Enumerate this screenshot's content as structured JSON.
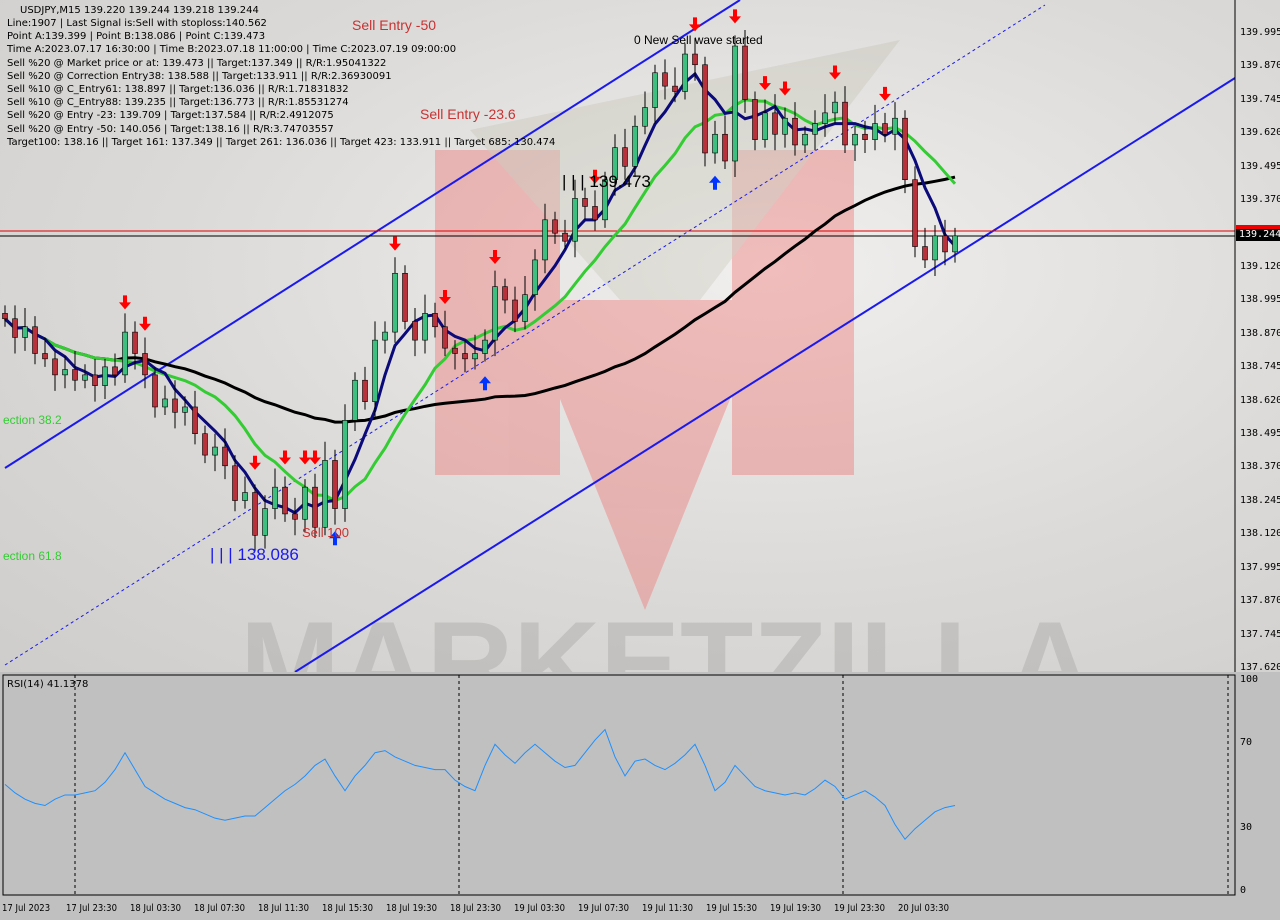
{
  "header": {
    "symbol_line": "USDJPY,M15  139.220 139.244 139.218 139.244",
    "lines": [
      "Line:1907 | Last Signal is:Sell with stoploss:140.562",
      "Point A:139.399 | Point B:138.086 | Point C:139.473",
      "Time A:2023.07.17 16:30:00 | Time B:2023.07.18 11:00:00 | Time C:2023.07.19 09:00:00",
      "Sell %20 @ Market price or at: 139.473 || Target:137.349 || R/R:1.95041322",
      "Sell %20 @ Correction Entry38: 138.588 || Target:133.911 || R/R:2.36930091",
      "Sell %10 @ C_Entry61: 138.897 || Target:136.036 || R/R:1.71831832",
      "Sell %10 @ C_Entry88: 139.235 || Target:136.773 || R/R:1.85531274",
      "Sell %20 @ Entry -23: 139.709 | Target:137.584 || R/R:2.4912075",
      "Sell %20 @ Entry -50: 140.056 | Target:138.16 || R/R:3.74703557",
      "Target100: 138.16 || Target 161: 137.349 || Target 261: 136.036 || Target 423: 133.911 || Target 685: 130.474"
    ]
  },
  "annotations": {
    "sell_entry_50": "Sell Entry -50",
    "sell_entry_23": "Sell Entry -23.6",
    "new_wave": "0 New Sell wave started",
    "point_c": "| | | 139.473",
    "point_b": "| | | 138.086",
    "correction_38": "ection 38.2",
    "correction_61": "ection 61.8",
    "sell_100": "Sell 100"
  },
  "watermark": "MARKETZILLA",
  "colors": {
    "bull": "#3fbf7f",
    "bear": "#b8323c",
    "ma_fast": "#0a0a7a",
    "ma_mid": "#33cc33",
    "ma_slow": "#000000",
    "channel": "#1a1aee",
    "rsi": "#1e90ff",
    "signal_down": "#ff0000",
    "signal_up": "#0033ff"
  },
  "chart_data": [
    {
      "type": "candlestick",
      "symbol": "USDJPY",
      "timeframe": "M15",
      "ylim": [
        137.62,
        140.05
      ],
      "y_ticks": [
        "139.995",
        "139.870",
        "139.745",
        "139.620",
        "139.495",
        "139.370",
        "139.120",
        "138.995",
        "138.870",
        "138.745",
        "138.620",
        "138.495",
        "138.370",
        "138.245",
        "138.120",
        "137.995",
        "137.870",
        "137.745",
        "137.620"
      ],
      "current_price": "139.244",
      "x_ticks": [
        "17 Jul 2023",
        "17 Jul 23:30",
        "18 Jul 03:30",
        "18 Jul 07:30",
        "18 Jul 11:30",
        "18 Jul 15:30",
        "18 Jul 19:30",
        "18 Jul 23:30",
        "19 Jul 03:30",
        "19 Jul 07:30",
        "19 Jul 11:30",
        "19 Jul 15:30",
        "19 Jul 19:30",
        "19 Jul 23:30",
        "20 Jul 03:30"
      ],
      "closes": [
        138.93,
        138.86,
        138.9,
        138.8,
        138.78,
        138.72,
        138.74,
        138.7,
        138.72,
        138.68,
        138.75,
        138.72,
        138.88,
        138.8,
        138.72,
        138.6,
        138.63,
        138.58,
        138.6,
        138.5,
        138.42,
        138.45,
        138.38,
        138.25,
        138.28,
        138.12,
        138.22,
        138.3,
        138.2,
        138.18,
        138.3,
        138.15,
        138.4,
        138.22,
        138.55,
        138.7,
        138.62,
        138.85,
        138.88,
        139.1,
        138.92,
        138.85,
        138.95,
        138.9,
        138.82,
        138.8,
        138.78,
        138.8,
        138.85,
        139.05,
        139.0,
        138.92,
        139.02,
        139.15,
        139.3,
        139.25,
        139.22,
        139.38,
        139.35,
        139.3,
        139.45,
        139.57,
        139.5,
        139.65,
        139.72,
        139.85,
        139.8,
        139.78,
        139.92,
        139.88,
        139.55,
        139.62,
        139.52,
        139.95,
        139.75,
        139.6,
        139.7,
        139.62,
        139.68,
        139.58,
        139.62,
        139.66,
        139.7,
        139.74,
        139.58,
        139.62,
        139.6,
        139.66,
        139.62,
        139.68,
        139.45,
        139.2,
        139.15,
        139.24,
        139.18,
        139.24
      ],
      "signals_down": [
        12,
        14,
        25,
        28,
        30,
        31,
        39,
        44,
        49,
        59,
        69,
        73,
        76,
        78,
        83,
        88
      ],
      "signals_up": [
        33,
        48,
        71
      ]
    },
    {
      "type": "line",
      "title": "RSI(14) 41.1378",
      "ylim": [
        0,
        100
      ],
      "y_ticks": [
        "100",
        "70",
        "30",
        "0"
      ],
      "values": [
        51,
        47,
        44,
        42,
        41,
        44,
        46,
        46,
        47,
        48,
        52,
        58,
        66,
        58,
        50,
        47,
        44,
        42,
        40,
        39,
        37,
        35,
        34,
        35,
        36,
        36,
        40,
        44,
        48,
        51,
        55,
        60,
        63,
        55,
        48,
        55,
        60,
        66,
        67,
        64,
        62,
        60,
        59,
        58,
        58,
        53,
        50,
        48,
        60,
        70,
        65,
        61,
        66,
        70,
        66,
        62,
        59,
        60,
        66,
        72,
        77,
        64,
        55,
        62,
        63,
        60,
        58,
        61,
        65,
        70,
        60,
        48,
        52,
        60,
        55,
        50,
        48,
        47,
        46,
        47,
        46,
        49,
        53,
        50,
        44,
        46,
        48,
        45,
        41,
        32,
        25,
        30,
        34,
        38,
        40,
        41
      ]
    }
  ]
}
